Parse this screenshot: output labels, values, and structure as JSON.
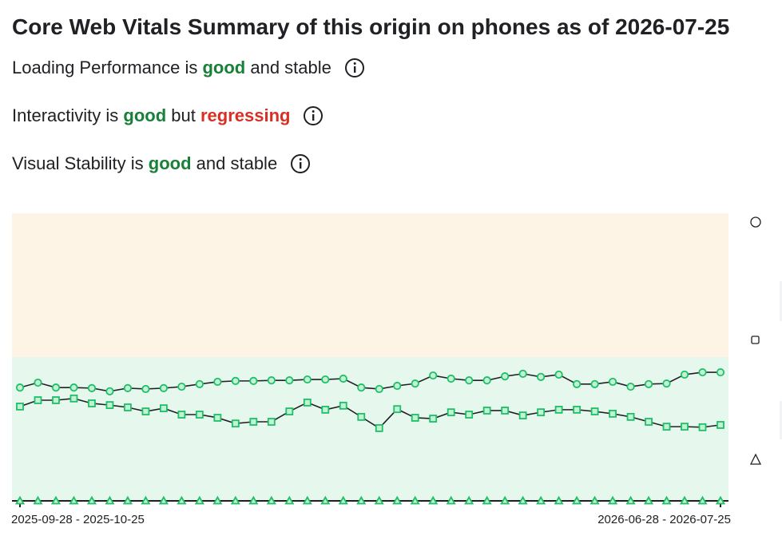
{
  "title": "Core Web Vitals Summary of this origin on phones as of 2026-07-25",
  "summary": [
    [
      {
        "text": "Loading Performance is "
      },
      {
        "text": "good",
        "tone": "good"
      },
      {
        "text": " and stable"
      }
    ],
    [
      {
        "text": "Interactivity is "
      },
      {
        "text": "good",
        "tone": "good"
      },
      {
        "text": " but "
      },
      {
        "text": "regressing",
        "tone": "bad"
      }
    ],
    [
      {
        "text": "Visual Stability is "
      },
      {
        "text": "good",
        "tone": "good"
      },
      {
        "text": " and stable"
      }
    ]
  ],
  "tones": {
    "good": "#188038",
    "bad": "#d93025"
  },
  "chart_data": {
    "type": "line",
    "categories": [
      "2025-09-28 - 2025-10-25",
      null,
      null,
      null,
      null,
      null,
      null,
      null,
      null,
      null,
      null,
      null,
      null,
      null,
      null,
      null,
      null,
      null,
      null,
      null,
      null,
      null,
      null,
      null,
      null,
      null,
      null,
      null,
      null,
      null,
      null,
      null,
      null,
      null,
      null,
      null,
      null,
      null,
      null,
      "2026-06-28 - 2026-07-25"
    ],
    "ylim": [
      0,
      100
    ],
    "bands": [
      {
        "from": 50,
        "to": 100,
        "color": "#fdf4e5"
      },
      {
        "from": 0,
        "to": 50,
        "color": "#e6f8ee"
      }
    ],
    "series": [
      {
        "marker": "circle",
        "color": "#1fbf66",
        "values": [
          39.4,
          41.1,
          39.4,
          39.4,
          39.2,
          38.1,
          39.2,
          38.9,
          39.2,
          39.7,
          40.6,
          41.4,
          41.7,
          41.7,
          41.9,
          41.9,
          42.2,
          42.2,
          42.5,
          39.4,
          38.9,
          40,
          40.8,
          43.6,
          42.5,
          41.9,
          41.9,
          43.3,
          44.2,
          43.1,
          43.9,
          40.6,
          40.6,
          41.4,
          39.7,
          40.6,
          40.8,
          43.9,
          44.7,
          44.7
        ]
      },
      {
        "marker": "square",
        "color": "#1fbf66",
        "values": [
          32.8,
          35,
          35,
          35.6,
          33.9,
          33.3,
          32.5,
          31.1,
          32.2,
          30,
          30,
          28.9,
          26.9,
          27.5,
          27.5,
          31.1,
          34.2,
          31.7,
          33.1,
          29.2,
          25.3,
          31.9,
          28.9,
          28.6,
          30.8,
          30,
          31.4,
          31.4,
          29.7,
          30.8,
          31.7,
          31.7,
          31.1,
          30.3,
          29.2,
          27.5,
          25.8,
          25.8,
          25.6,
          26.4
        ]
      },
      {
        "marker": "triangle",
        "color": "#1fbf66",
        "values": [
          0,
          0,
          0,
          0,
          0,
          0,
          0,
          0,
          0,
          0,
          0,
          0,
          0,
          0,
          0,
          0,
          0,
          0,
          0,
          0,
          0,
          0,
          0,
          0,
          0,
          0,
          0,
          0,
          0,
          0,
          0,
          0,
          0,
          0,
          0,
          0,
          0,
          0,
          0,
          0
        ]
      }
    ]
  }
}
